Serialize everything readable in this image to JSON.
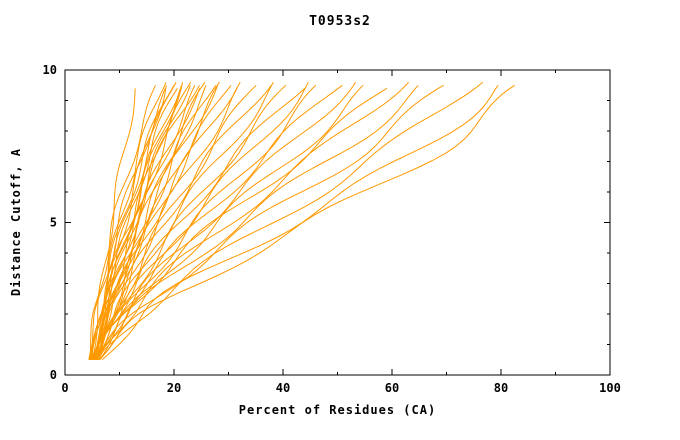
{
  "chart_data": {
    "type": "line",
    "title": "T0953s2",
    "xlabel": "Percent of Residues (CA)",
    "ylabel": "Distance Cutoff, A",
    "xlim": [
      0,
      100
    ],
    "ylim": [
      0,
      10
    ],
    "xticks": [
      0,
      20,
      40,
      60,
      80,
      100
    ],
    "yticks": [
      0,
      5,
      10
    ],
    "x_minor_step": 10,
    "y_minor_step": 1,
    "grid": false,
    "legend": "none",
    "background": "#ffffff",
    "line_color": "#ff9900",
    "axis_color": "#000000",
    "series": [
      {
        "points": [
          [
            5,
            0.5
          ],
          [
            6.5,
            2.5
          ],
          [
            8.5,
            5
          ],
          [
            11,
            7.5
          ],
          [
            13,
            9.4
          ]
        ]
      },
      {
        "points": [
          [
            4.5,
            0.5
          ],
          [
            6,
            2.5
          ],
          [
            9,
            5
          ],
          [
            13,
            7.5
          ],
          [
            17,
            9.5
          ]
        ]
      },
      {
        "points": [
          [
            5,
            0.5
          ],
          [
            7,
            2.5
          ],
          [
            10,
            5
          ],
          [
            14,
            7.5
          ],
          [
            18,
            9.6
          ]
        ]
      },
      {
        "points": [
          [
            5.5,
            0.5
          ],
          [
            7.5,
            2.5
          ],
          [
            11,
            5
          ],
          [
            15,
            7.5
          ],
          [
            18.5,
            9.5
          ]
        ]
      },
      {
        "points": [
          [
            4.5,
            0.5
          ],
          [
            6.5,
            2.5
          ],
          [
            10,
            5
          ],
          [
            14.5,
            7.5
          ],
          [
            19,
            9.4
          ]
        ]
      },
      {
        "points": [
          [
            5,
            0.5
          ],
          [
            7,
            2.5
          ],
          [
            11,
            5
          ],
          [
            15.5,
            7.5
          ],
          [
            20,
            9.6
          ]
        ]
      },
      {
        "points": [
          [
            6,
            0.5
          ],
          [
            8,
            2.5
          ],
          [
            12,
            5
          ],
          [
            16.5,
            7.5
          ],
          [
            21,
            9.5
          ]
        ]
      },
      {
        "points": [
          [
            5,
            0.5
          ],
          [
            8,
            2.5
          ],
          [
            12.5,
            5
          ],
          [
            17,
            7.5
          ],
          [
            22,
            9.5
          ]
        ]
      },
      {
        "points": [
          [
            5.5,
            0.5
          ],
          [
            8.5,
            2.5
          ],
          [
            13,
            5
          ],
          [
            18,
            7.5
          ],
          [
            23,
            9.6
          ]
        ]
      },
      {
        "points": [
          [
            4.5,
            0.5
          ],
          [
            7,
            2.5
          ],
          [
            12,
            5
          ],
          [
            18,
            7.5
          ],
          [
            24,
            9.5
          ]
        ]
      },
      {
        "points": [
          [
            5,
            0.5
          ],
          [
            8,
            2.5
          ],
          [
            13,
            5
          ],
          [
            19,
            7.5
          ],
          [
            25,
            9.4
          ]
        ]
      },
      {
        "points": [
          [
            5.5,
            0.5
          ],
          [
            9,
            2.5
          ],
          [
            14,
            5
          ],
          [
            20,
            7.5
          ],
          [
            26,
            9.6
          ]
        ]
      },
      {
        "points": [
          [
            6,
            0.5
          ],
          [
            9.5,
            2.5
          ],
          [
            15,
            5
          ],
          [
            21,
            7.5
          ],
          [
            27,
            9.5
          ]
        ]
      },
      {
        "points": [
          [
            5,
            0.5
          ],
          [
            8.5,
            2.5
          ],
          [
            14.5,
            5
          ],
          [
            21.5,
            7.5
          ],
          [
            28,
            9.5
          ]
        ]
      },
      {
        "points": [
          [
            5.5,
            0.5
          ],
          [
            9,
            2.5
          ],
          [
            15.5,
            5
          ],
          [
            22.5,
            7.5
          ],
          [
            29,
            9.6
          ]
        ]
      },
      {
        "points": [
          [
            6,
            0.5
          ],
          [
            10,
            2.5
          ],
          [
            16,
            5
          ],
          [
            23.5,
            7.5
          ],
          [
            30,
            9.5
          ]
        ]
      },
      {
        "points": [
          [
            5,
            0.5
          ],
          [
            9,
            2.5
          ],
          [
            16,
            5
          ],
          [
            24,
            7.5
          ],
          [
            31,
            9.4
          ]
        ]
      },
      {
        "points": [
          [
            5.5,
            0.5
          ],
          [
            10,
            2.5
          ],
          [
            17,
            5
          ],
          [
            25.5,
            7.5
          ],
          [
            33,
            9.6
          ]
        ]
      },
      {
        "points": [
          [
            6,
            0.5
          ],
          [
            10.5,
            2.5
          ],
          [
            18,
            5
          ],
          [
            27,
            7.5
          ],
          [
            35,
            9.5
          ]
        ]
      },
      {
        "points": [
          [
            5,
            0.5
          ],
          [
            10,
            2.5
          ],
          [
            18,
            5
          ],
          [
            28,
            7.5
          ],
          [
            37,
            9.5
          ]
        ]
      },
      {
        "points": [
          [
            5.5,
            0.5
          ],
          [
            11,
            2.5
          ],
          [
            19.5,
            5
          ],
          [
            30,
            7.5
          ],
          [
            39,
            9.6
          ]
        ]
      },
      {
        "points": [
          [
            6,
            0.5
          ],
          [
            11.5,
            2.5
          ],
          [
            21,
            5
          ],
          [
            32,
            7.5
          ],
          [
            41,
            9.5
          ]
        ]
      },
      {
        "points": [
          [
            5,
            0.5
          ],
          [
            11,
            2.5
          ],
          [
            21,
            5
          ],
          [
            33,
            7.5
          ],
          [
            43,
            9.4
          ]
        ]
      },
      {
        "points": [
          [
            5.5,
            0.5
          ],
          [
            12,
            2.5
          ],
          [
            22.5,
            5
          ],
          [
            35,
            7.5
          ],
          [
            45,
            9.6
          ]
        ]
      },
      {
        "points": [
          [
            6,
            0.5
          ],
          [
            12.5,
            2.5
          ],
          [
            24,
            5
          ],
          [
            37,
            7.5
          ],
          [
            47,
            9.5
          ]
        ]
      },
      {
        "points": [
          [
            5,
            0.5
          ],
          [
            12,
            2.5
          ],
          [
            24.5,
            5
          ],
          [
            38.5,
            7.5
          ],
          [
            50,
            9.5
          ]
        ]
      },
      {
        "points": [
          [
            5.5,
            0.5
          ],
          [
            13,
            2.5
          ],
          [
            26,
            5
          ],
          [
            41,
            7.5
          ],
          [
            53,
            9.6
          ]
        ]
      },
      {
        "points": [
          [
            6,
            0.5
          ],
          [
            14,
            2.5
          ],
          [
            28,
            5
          ],
          [
            44,
            7.5
          ],
          [
            56,
            9.5
          ]
        ]
      },
      {
        "points": [
          [
            5,
            0.5
          ],
          [
            13,
            2.5
          ],
          [
            28,
            5
          ],
          [
            46,
            7.5
          ],
          [
            59,
            9.4
          ]
        ]
      },
      {
        "points": [
          [
            5.5,
            0.5
          ],
          [
            14,
            2.5
          ],
          [
            30,
            5
          ],
          [
            48,
            7.5
          ],
          [
            62,
            9.6
          ]
        ]
      },
      {
        "points": [
          [
            6,
            0.5
          ],
          [
            15,
            2.5
          ],
          [
            32,
            5
          ],
          [
            52,
            7.5
          ],
          [
            66,
            9.5
          ]
        ]
      },
      {
        "points": [
          [
            5.5,
            0.5
          ],
          [
            16,
            2.5
          ],
          [
            35,
            5
          ],
          [
            56,
            7.5
          ],
          [
            70,
            9.5
          ]
        ]
      },
      {
        "points": [
          [
            6,
            0.5
          ],
          [
            17,
            2.5
          ],
          [
            38,
            5
          ],
          [
            60,
            7.5
          ],
          [
            75,
            9.6
          ]
        ]
      },
      {
        "points": [
          [
            6.5,
            0.5
          ],
          [
            18,
            2.5
          ],
          [
            42,
            5
          ],
          [
            66,
            7.5
          ],
          [
            80,
            9.5
          ]
        ]
      },
      {
        "points": [
          [
            6,
            0.5
          ],
          [
            19,
            2.5
          ],
          [
            45,
            5
          ],
          [
            70,
            7.5
          ],
          [
            84,
            9.5
          ]
        ]
      },
      {
        "points": [
          [
            4.8,
            0.5
          ],
          [
            6.8,
            2.5
          ],
          [
            10.5,
            5
          ],
          [
            15,
            7.5
          ],
          [
            19.5,
            9.5
          ]
        ]
      },
      {
        "points": [
          [
            5.2,
            0.5
          ],
          [
            7.8,
            2.5
          ],
          [
            12,
            5
          ],
          [
            16.8,
            7.5
          ],
          [
            21.5,
            9.6
          ]
        ]
      },
      {
        "points": [
          [
            5.8,
            0.5
          ],
          [
            8.8,
            2.5
          ],
          [
            13.5,
            5
          ],
          [
            19,
            7.5
          ],
          [
            24.5,
            9.5
          ]
        ]
      },
      {
        "points": [
          [
            4.6,
            0.5
          ],
          [
            7.4,
            2.5
          ],
          [
            11.5,
            5
          ],
          [
            16,
            7.5
          ],
          [
            20.5,
            9.4
          ]
        ]
      },
      {
        "points": [
          [
            5.4,
            0.5
          ],
          [
            8.2,
            2.5
          ],
          [
            12.8,
            5
          ],
          [
            17.5,
            7.5
          ],
          [
            22.5,
            9.5
          ]
        ]
      },
      {
        "points": [
          [
            5.6,
            0.5
          ],
          [
            9.2,
            2.5
          ],
          [
            14.5,
            5
          ],
          [
            20.5,
            7.5
          ],
          [
            26.5,
            9.5
          ]
        ]
      }
    ]
  }
}
